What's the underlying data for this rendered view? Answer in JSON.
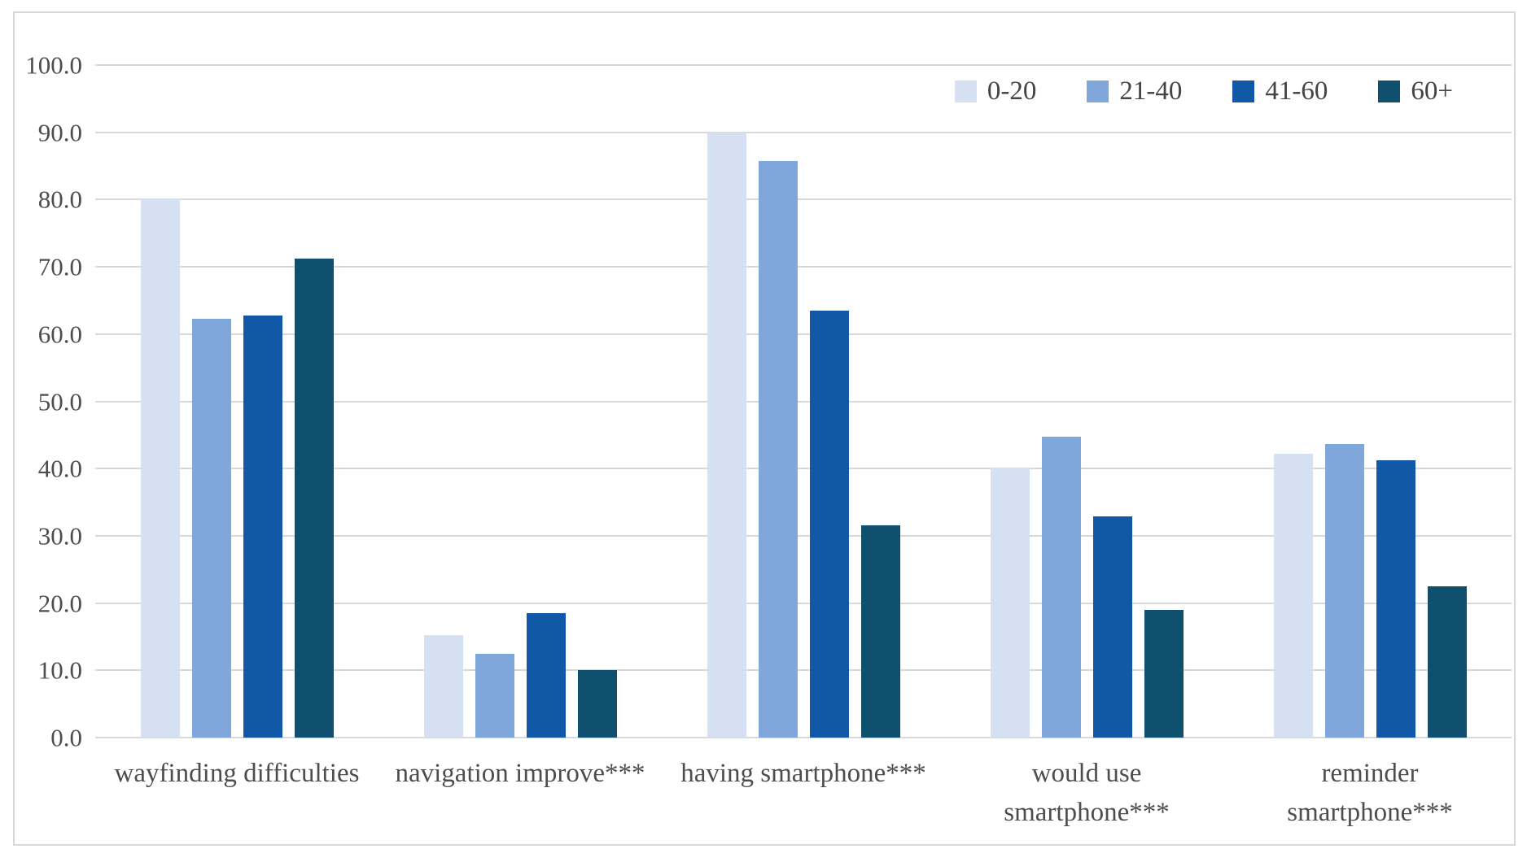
{
  "chart_data": {
    "type": "bar",
    "categories": [
      "wayfinding difficulties",
      "navigation improve***",
      "having smartphone***",
      "would use smartphone***",
      "reminder smartphone***"
    ],
    "category_lines": [
      [
        "wayfinding difficulties"
      ],
      [
        "navigation improve***"
      ],
      [
        "having smartphone***"
      ],
      [
        "would use",
        "smartphone***"
      ],
      [
        "reminder",
        "smartphone***"
      ]
    ],
    "series": [
      {
        "name": "0-20",
        "color": "#D5E1F2",
        "values": [
          80.2,
          15.2,
          90.0,
          40.1,
          42.2
        ]
      },
      {
        "name": "21-40",
        "color": "#7FA7DB",
        "values": [
          62.3,
          12.4,
          85.7,
          44.8,
          43.7
        ]
      },
      {
        "name": "41-60",
        "color": "#1158A7",
        "values": [
          62.8,
          18.5,
          63.5,
          32.9,
          41.2
        ]
      },
      {
        "name": "60+",
        "color": "#10506F",
        "values": [
          71.2,
          10.0,
          31.6,
          19.0,
          22.5
        ]
      }
    ],
    "ylim": [
      0,
      100
    ],
    "yticks": [
      0,
      10,
      20,
      30,
      40,
      50,
      60,
      70,
      80,
      90,
      100
    ],
    "ytick_labels": [
      "0.0",
      "10.0",
      "20.0",
      "30.0",
      "40.0",
      "50.0",
      "60.0",
      "70.0",
      "80.0",
      "90.0",
      "100.0"
    ],
    "grid": true,
    "legend_position": "top-right",
    "title": "",
    "xlabel": "",
    "ylabel": ""
  },
  "colors": {
    "gridline": "#D9D9D9",
    "frame_border": "#D8D8D8",
    "axis_text": "#4D4D4D",
    "legend_text": "#444444"
  }
}
